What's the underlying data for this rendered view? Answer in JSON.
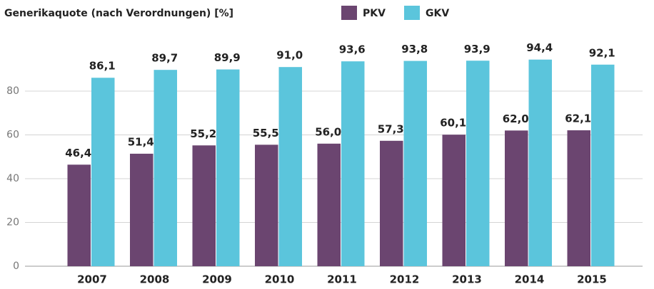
{
  "chart_data": {
    "type": "bar",
    "title": "Generikaquote (nach Verordnungen) [%]",
    "categories": [
      "2007",
      "2008",
      "2009",
      "2010",
      "2011",
      "2012",
      "2013",
      "2014",
      "2015"
    ],
    "series": [
      {
        "name": "PKV",
        "color": "#6b4570",
        "values": [
          46.4,
          51.4,
          55.2,
          55.5,
          56.0,
          57.3,
          60.1,
          62.0,
          62.1
        ],
        "value_labels": [
          "46,4",
          "51,4",
          "55,2",
          "55,5",
          "56,0",
          "57,3",
          "60,1",
          "62,0",
          "62,1"
        ]
      },
      {
        "name": "GKV",
        "color": "#5bc5dc",
        "values": [
          86.1,
          89.7,
          89.9,
          91.0,
          93.6,
          93.8,
          93.9,
          94.4,
          92.1
        ],
        "value_labels": [
          "86,1",
          "89,7",
          "89,9",
          "91,0",
          "93,6",
          "93,8",
          "93,9",
          "94,4",
          "92,1"
        ]
      }
    ],
    "ylim": [
      0,
      100
    ],
    "yticks": [
      0,
      20,
      40,
      60,
      80
    ],
    "grid": true
  }
}
